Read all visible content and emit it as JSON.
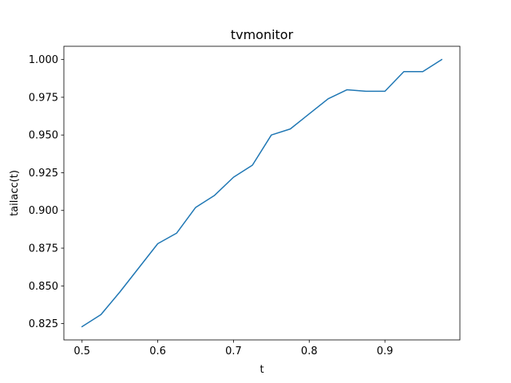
{
  "chart_data": {
    "type": "line",
    "title": "tvmonitor",
    "xlabel": "t",
    "ylabel": "tailacc(t)",
    "xlim": [
      0.476,
      0.999
    ],
    "ylim": [
      0.8142,
      1.0088
    ],
    "xticks": [
      0.5,
      0.6,
      0.7,
      0.8,
      0.9
    ],
    "xtick_labels": [
      "0.5",
      "0.6",
      "0.7",
      "0.8",
      "0.9"
    ],
    "yticks": [
      0.825,
      0.85,
      0.875,
      0.9,
      0.925,
      0.95,
      0.975,
      1.0
    ],
    "ytick_labels": [
      "0.825",
      "0.850",
      "0.875",
      "0.900",
      "0.925",
      "0.950",
      "0.975",
      "1.000"
    ],
    "grid": false,
    "series": [
      {
        "color": "#1f77b4",
        "x": [
          0.5,
          0.525,
          0.55,
          0.575,
          0.6,
          0.625,
          0.65,
          0.675,
          0.7,
          0.725,
          0.75,
          0.775,
          0.8,
          0.825,
          0.85,
          0.875,
          0.9,
          0.925,
          0.95,
          0.975
        ],
        "y": [
          0.823,
          0.831,
          0.846,
          0.862,
          0.878,
          0.885,
          0.902,
          0.91,
          0.922,
          0.93,
          0.95,
          0.954,
          0.964,
          0.974,
          0.98,
          0.979,
          0.979,
          0.992,
          0.992,
          1.0
        ]
      }
    ]
  }
}
